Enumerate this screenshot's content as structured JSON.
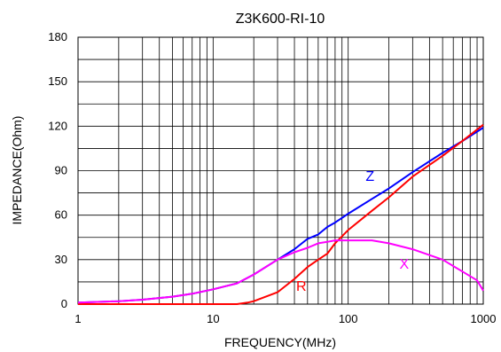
{
  "chart_data": {
    "type": "line",
    "title": "Z3K600-RI-10",
    "xlabel": "FREQUENCY(MHz)",
    "ylabel": "IMPEDANCE(Ohm)",
    "xscale": "log",
    "xlim": [
      1,
      1000
    ],
    "ylim": [
      0,
      180
    ],
    "x_ticks": [
      1,
      10,
      100,
      1000
    ],
    "x_tick_labels": [
      "1",
      "10",
      "100",
      "1000"
    ],
    "y_ticks": [
      0,
      30,
      60,
      90,
      120,
      150,
      180
    ],
    "y_tick_labels": [
      "0",
      "30",
      "60",
      "90",
      "120",
      "150",
      "180"
    ],
    "grid": true,
    "legend": "inline labels",
    "series": [
      {
        "name": "Z",
        "color": "#0000ff",
        "x": [
          1,
          2,
          3,
          5,
          7,
          10,
          15,
          20,
          30,
          40,
          50,
          60,
          70,
          80,
          100,
          150,
          200,
          300,
          500,
          700,
          1000
        ],
        "y": [
          1,
          2,
          3,
          5,
          7,
          10,
          14,
          20,
          30,
          37,
          44,
          47,
          52,
          55,
          61,
          71,
          78,
          89,
          102,
          110,
          119
        ]
      },
      {
        "name": "R",
        "color": "#ff0000",
        "x": [
          1,
          2,
          3,
          5,
          7,
          10,
          15,
          18,
          20,
          30,
          40,
          50,
          60,
          70,
          80,
          100,
          150,
          200,
          300,
          500,
          700,
          1000
        ],
        "y": [
          0,
          0,
          0,
          0,
          0,
          0,
          0,
          1,
          2,
          8,
          17,
          25,
          30,
          34,
          41,
          50,
          63,
          72,
          86,
          100,
          110,
          121
        ]
      },
      {
        "name": "X",
        "color": "#ff00ff",
        "x": [
          1,
          2,
          3,
          5,
          7,
          10,
          15,
          20,
          30,
          40,
          50,
          60,
          70,
          80,
          100,
          150,
          200,
          300,
          500,
          700,
          900,
          1000
        ],
        "y": [
          1,
          2,
          3,
          5,
          7,
          10,
          14,
          20,
          30,
          35,
          38,
          41,
          42,
          43,
          43,
          43,
          41,
          37,
          30,
          22,
          16,
          9
        ]
      }
    ],
    "annotations": [
      {
        "text": "Z",
        "x": 145,
        "y": 83,
        "color": "#0000ff"
      },
      {
        "text": "R",
        "x": 45,
        "y": 9,
        "color": "#ff0000"
      },
      {
        "text": "X",
        "x": 260,
        "y": 24,
        "color": "#ff00ff"
      }
    ]
  }
}
